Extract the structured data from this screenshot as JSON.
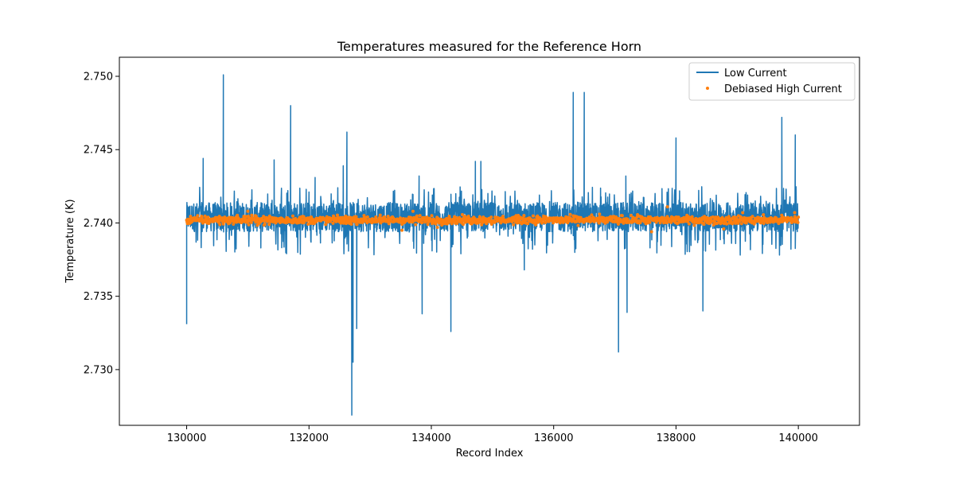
{
  "chart_data": {
    "type": "line",
    "title": "Temperatures measured for the Reference Horn",
    "xlabel": "Record Index",
    "ylabel": "Temperature (K)",
    "xlim": [
      128900,
      141000
    ],
    "ylim": [
      2.7262,
      2.7513
    ],
    "xticks": [
      130000,
      132000,
      134000,
      136000,
      138000,
      140000
    ],
    "xtick_labels": [
      "130000",
      "132000",
      "134000",
      "136000",
      "138000",
      "140000"
    ],
    "yticks": [
      2.73,
      2.735,
      2.74,
      2.745,
      2.75
    ],
    "ytick_labels": [
      "2.730",
      "2.735",
      "2.740",
      "2.745",
      "2.750"
    ],
    "grid": false,
    "legend_position": "top-right",
    "colors": {
      "low_current": "#1f77b4",
      "high_current": "#ff7f0e"
    },
    "series": [
      {
        "name": "Low Current",
        "kind": "line",
        "x_start": 130000,
        "x_end": 140000,
        "band_low": 2.7394,
        "band_high": 2.7414,
        "typical_dip_low": 2.7378,
        "typical_spike_high": 2.7425,
        "spikes": [
          {
            "x": 130000,
            "y": 2.7331
          },
          {
            "x": 130270,
            "y": 2.7444
          },
          {
            "x": 130600,
            "y": 2.7501
          },
          {
            "x": 131430,
            "y": 2.7443
          },
          {
            "x": 131700,
            "y": 2.748
          },
          {
            "x": 132100,
            "y": 2.7431
          },
          {
            "x": 132560,
            "y": 2.7439
          },
          {
            "x": 132620,
            "y": 2.7462
          },
          {
            "x": 132700,
            "y": 2.7269
          },
          {
            "x": 132720,
            "y": 2.7305
          },
          {
            "x": 132780,
            "y": 2.7328
          },
          {
            "x": 133800,
            "y": 2.7432
          },
          {
            "x": 133850,
            "y": 2.7338
          },
          {
            "x": 134320,
            "y": 2.7326
          },
          {
            "x": 134720,
            "y": 2.7442
          },
          {
            "x": 134810,
            "y": 2.7442
          },
          {
            "x": 135520,
            "y": 2.7368
          },
          {
            "x": 136320,
            "y": 2.7489
          },
          {
            "x": 136500,
            "y": 2.7489
          },
          {
            "x": 137060,
            "y": 2.7312
          },
          {
            "x": 137180,
            "y": 2.7432
          },
          {
            "x": 137200,
            "y": 2.7339
          },
          {
            "x": 138000,
            "y": 2.7458
          },
          {
            "x": 138440,
            "y": 2.734
          },
          {
            "x": 139730,
            "y": 2.7472
          },
          {
            "x": 139950,
            "y": 2.746
          }
        ]
      },
      {
        "name": "Debiased High Current",
        "kind": "scatter",
        "x_start": 130000,
        "x_end": 140000,
        "center": 2.7402,
        "spread": 0.0003,
        "outliers": [
          {
            "x": 131000,
            "y": 2.7408
          },
          {
            "x": 131350,
            "y": 2.7399
          },
          {
            "x": 133520,
            "y": 2.7395
          },
          {
            "x": 133700,
            "y": 2.7408
          },
          {
            "x": 134100,
            "y": 2.7397
          },
          {
            "x": 136750,
            "y": 2.7406
          },
          {
            "x": 137600,
            "y": 2.7394
          },
          {
            "x": 137860,
            "y": 2.7411
          },
          {
            "x": 138780,
            "y": 2.7396
          },
          {
            "x": 139090,
            "y": 2.7407
          },
          {
            "x": 139940,
            "y": 2.7407
          }
        ]
      }
    ]
  }
}
